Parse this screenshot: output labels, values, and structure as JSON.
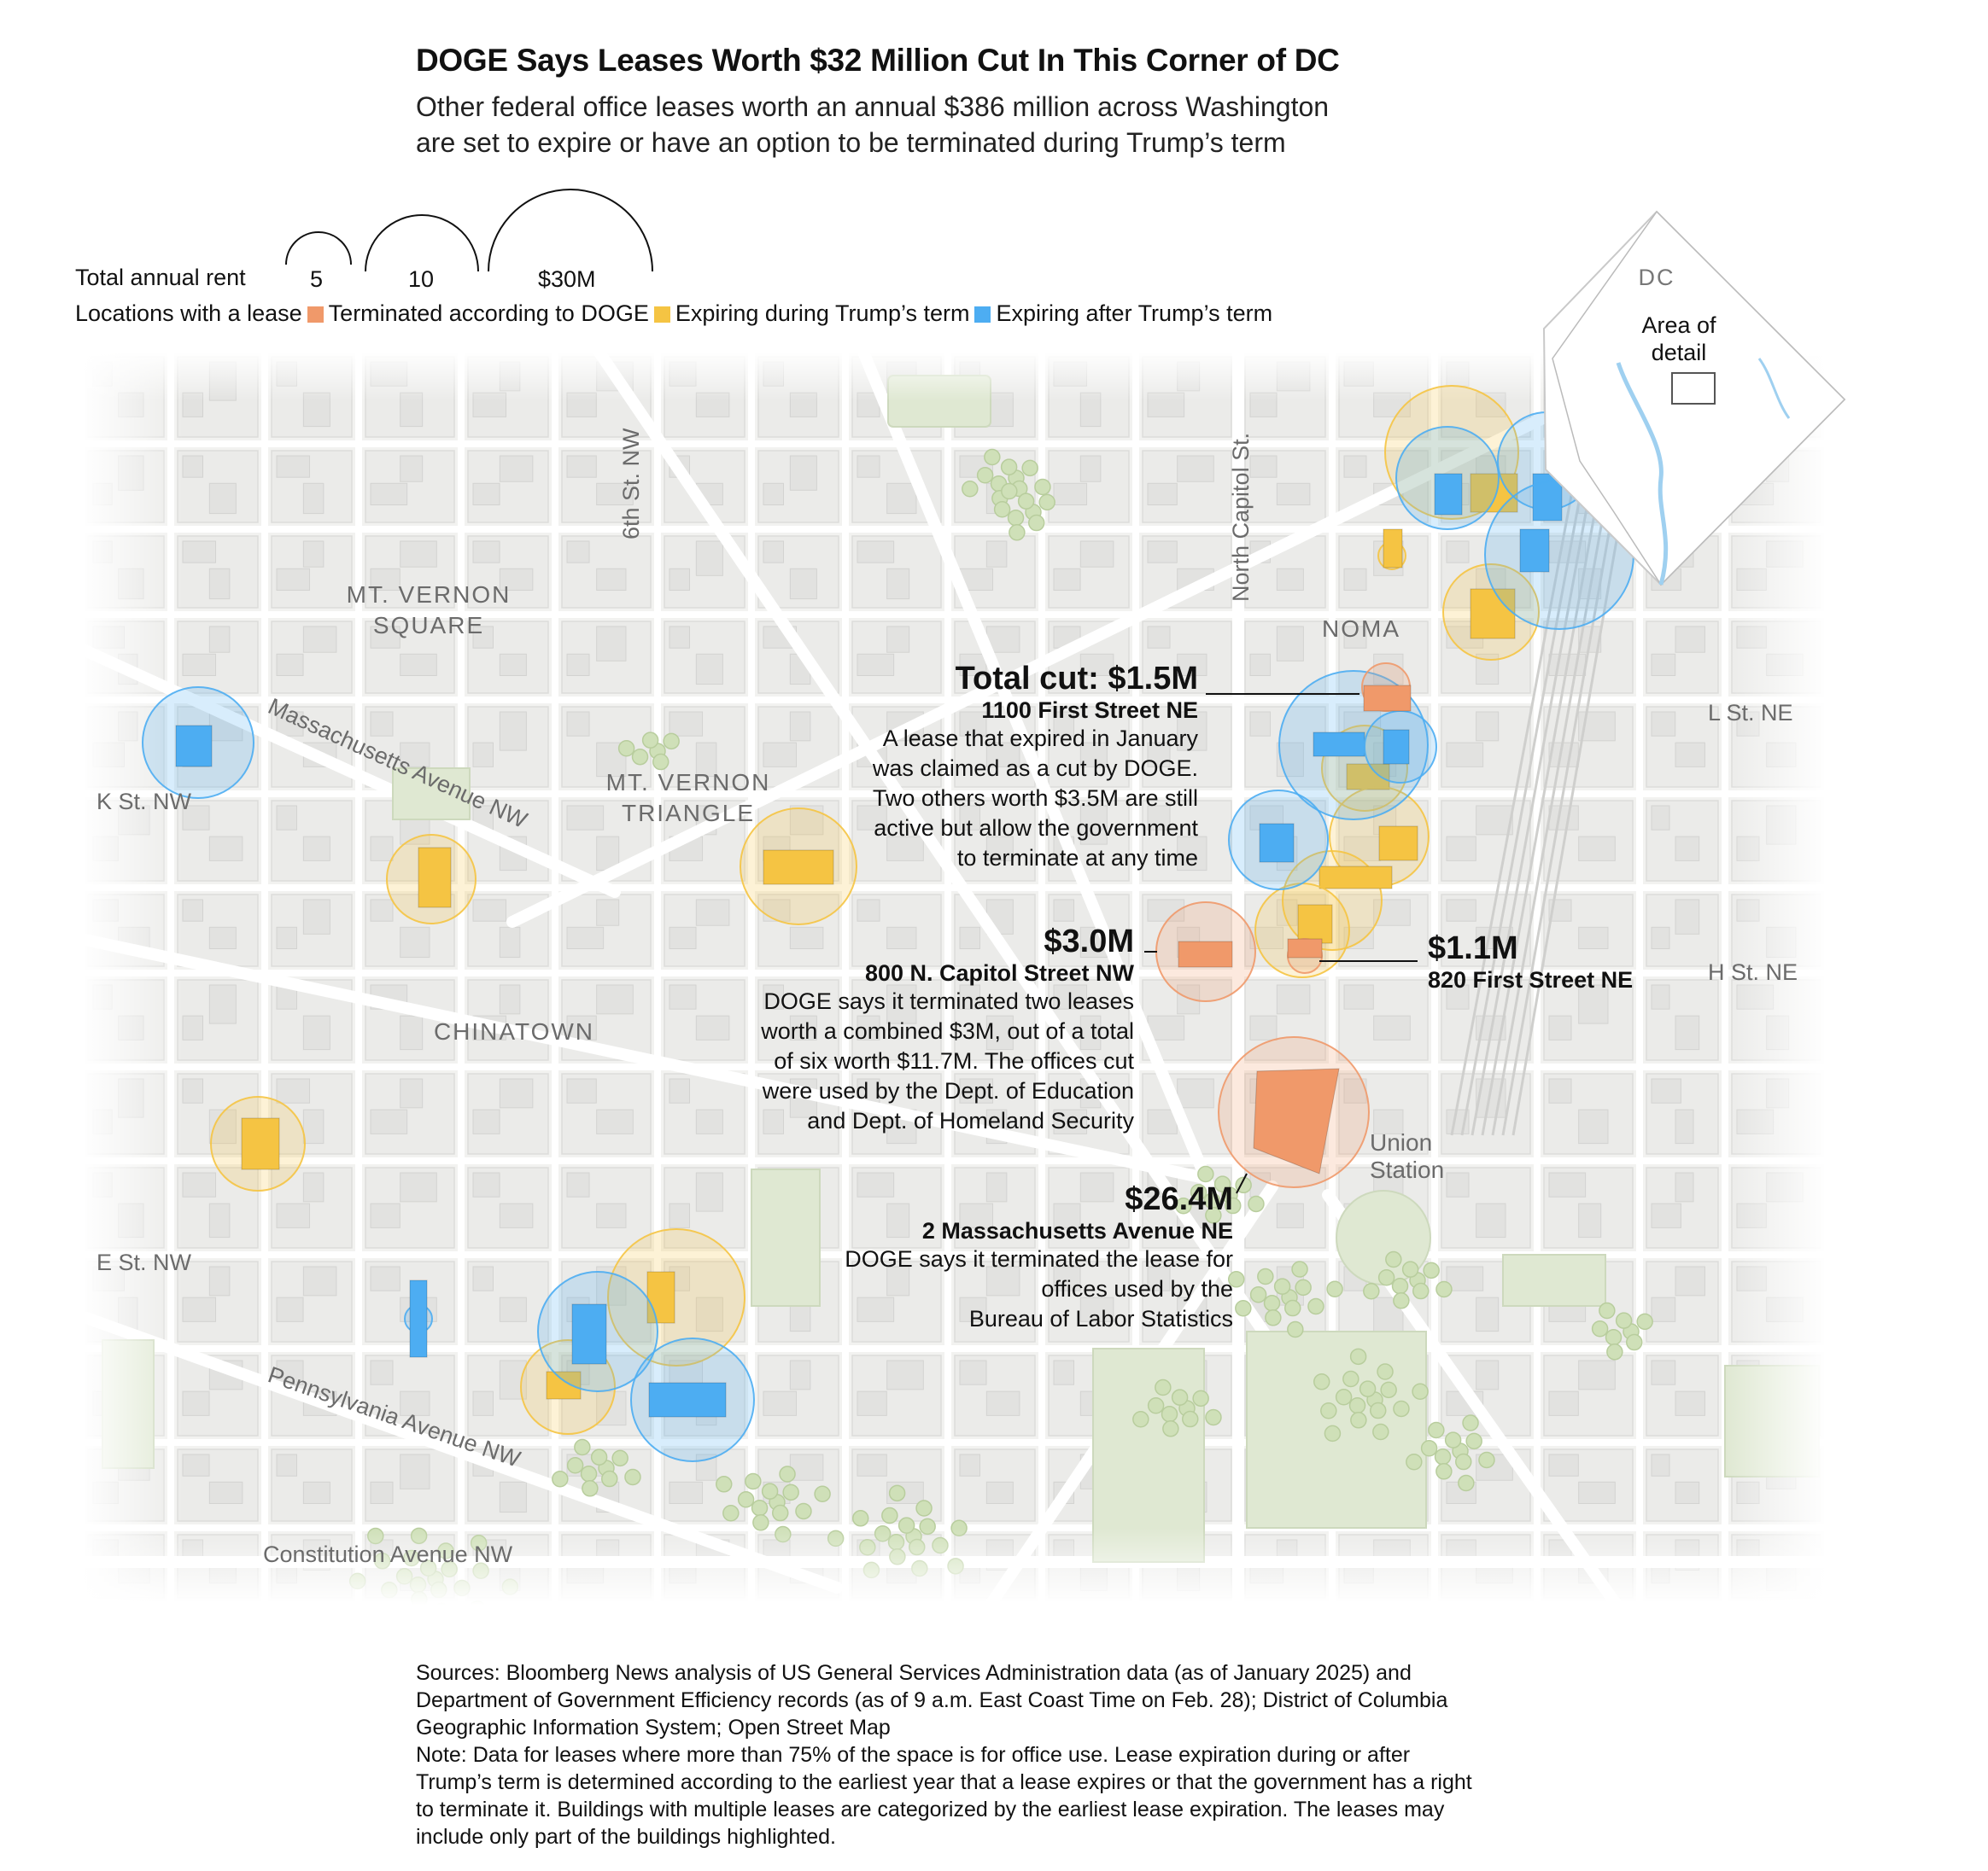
{
  "header": {
    "title": "DOGE Says Leases Worth $32 Million Cut In This Corner of DC",
    "subtitle_line1": "Other federal office leases worth an annual $386 million across Washington",
    "subtitle_line2": "are set to expire or have an option to be terminated during Trump’s term"
  },
  "legend": {
    "size_label": "Total annual rent",
    "size_values": [
      "5",
      "10",
      "$30M"
    ],
    "color_label": "Locations with a lease",
    "categories": [
      {
        "label": "Terminated according to DOGE",
        "color": "#F0996A"
      },
      {
        "label": "Expiring during Trump’s term",
        "color": "#F5C443"
      },
      {
        "label": "Expiring after Trump’s term",
        "color": "#4DADF2"
      }
    ]
  },
  "inset": {
    "title": "DC",
    "label_line1": "Area of",
    "label_line2": "detail"
  },
  "map_labels": {
    "neighborhoods": [
      "MT. VERNON",
      "SQUARE",
      "MT. VERNON",
      "TRIANGLE",
      "CHINATOWN",
      "NOMA"
    ],
    "streets": [
      "6th St. NW",
      "North Capitol St.",
      "Massachusetts Avenue NW",
      "K St. NW",
      "L St. NE",
      "H St. NE",
      "E St. NW",
      "Pennsylvania Avenue NW",
      "Constitution Avenue NW"
    ],
    "landmark_line1": "Union",
    "landmark_line2": "Station"
  },
  "annotations": [
    {
      "value": "Total cut: $1.5M",
      "address": "1100 First Street NE",
      "description": [
        "A lease that expired in January",
        "was claimed as a cut by DOGE.",
        "Two others worth $3.5M are still",
        "active but allow the government",
        "to terminate at any time"
      ]
    },
    {
      "value": "$3.0M",
      "address": "800 N. Capitol Street NW",
      "description": [
        "DOGE says it terminated two leases",
        "worth a combined $3M, out of a total",
        "of six worth $11.7M. The offices cut",
        "were used by the Dept. of Education",
        "and Dept. of Homeland Security"
      ]
    },
    {
      "value": "$1.1M",
      "address": "820 First Street NE",
      "description": []
    },
    {
      "value": "$26.4M",
      "address": "2 Massachusetts Avenue NE",
      "description": [
        "DOGE says it terminated the lease for",
        "offices used by the",
        "Bureau of Labor Statistics"
      ]
    }
  ],
  "footer": {
    "sources": "Sources: Bloomberg News analysis of US General Services Administration data (as of January 2025) and Department of Government Efficiency records (as of 9 a.m. East Coast Time on Feb. 28); District of Columbia Geographic Information System; Open Street Map",
    "note": "Note: Data for leases where more than 75% of the space is for office use. Lease expiration during or after Trump’s term is determined according to the earliest year that a lease expires or that the government has a right to terminate it. Buildings with multiple leases are categorized by the earliest lease expiration. The leases may include only part of the buildings highlighted."
  }
}
